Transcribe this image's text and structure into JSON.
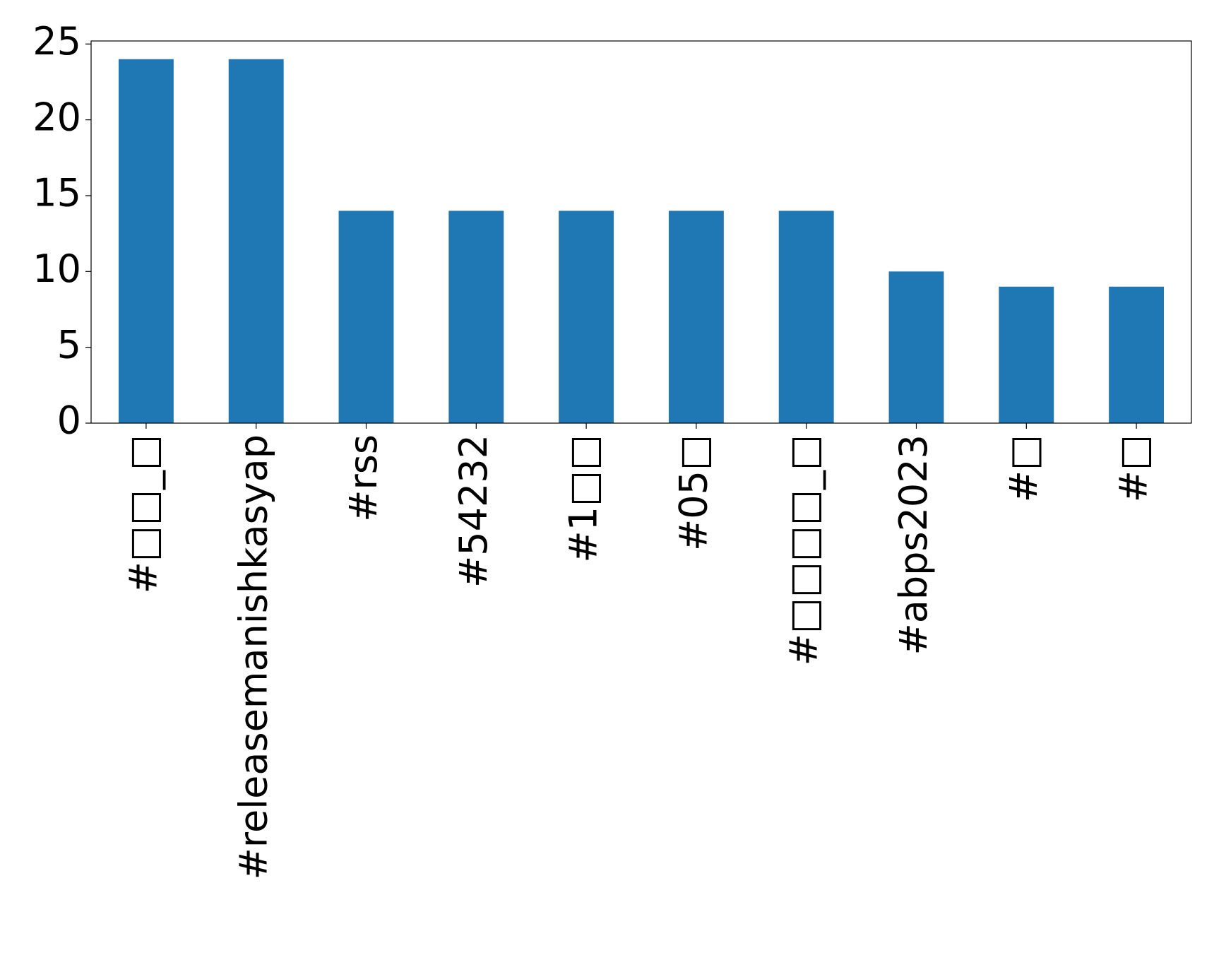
{
  "chart_data": {
    "type": "bar",
    "categories": [
      "#□□_□",
      "#releasemanishkasyap",
      "#rss",
      "#54232",
      "#1□□",
      "#05□",
      "#□□□□_□",
      "#abps2023",
      "#□",
      "#□"
    ],
    "values": [
      24,
      24,
      14,
      14,
      14,
      14,
      14,
      10,
      9,
      9
    ],
    "color": "#1f77b4",
    "ylim": [
      0,
      25.2
    ],
    "yticks": [
      0,
      5,
      10,
      15,
      20,
      25
    ]
  }
}
